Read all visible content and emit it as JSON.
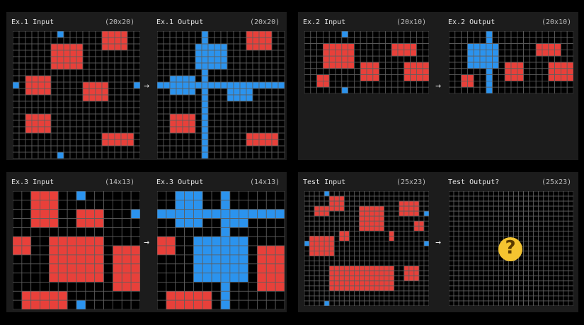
{
  "colors": {
    "background": "#000000",
    "panel": "#1c1c1c",
    "cell_empty": "#000000",
    "grid_line": "#5e5e5e",
    "red": "#e8403a",
    "blue": "#2b93ee"
  },
  "arrow_glyph": "→",
  "test_emoji": "thinking-face-icon",
  "examples": [
    {
      "input": {
        "title": "Ex.1 Input",
        "dims": "(20x20)",
        "cols": 20,
        "rows": 20,
        "red": [
          [
            6,
            2,
            5,
            4
          ],
          [
            14,
            0,
            4,
            3
          ],
          [
            2,
            7,
            4,
            3
          ],
          [
            11,
            8,
            4,
            3
          ],
          [
            2,
            13,
            4,
            3
          ],
          [
            14,
            16,
            5,
            2
          ]
        ],
        "blue": [
          [
            7,
            0
          ],
          [
            0,
            8
          ],
          [
            19,
            8
          ],
          [
            7,
            19
          ]
        ]
      },
      "output": {
        "title": "Ex.1 Output",
        "dims": "(20x20)",
        "cols": 20,
        "rows": 20,
        "red": [
          [
            14,
            0,
            4,
            3
          ],
          [
            2,
            13,
            4,
            3
          ],
          [
            14,
            16,
            5,
            2
          ]
        ],
        "blue_rects": [
          [
            6,
            2,
            5,
            4
          ],
          [
            2,
            7,
            4,
            3
          ],
          [
            11,
            8,
            4,
            3
          ]
        ],
        "blue_cols": [
          7
        ],
        "blue_rows": [
          8
        ]
      }
    },
    {
      "input": {
        "title": "Ex.2 Input",
        "dims": "(20x10)",
        "cols": 20,
        "rows": 10,
        "red": [
          [
            3,
            2,
            5,
            4
          ],
          [
            14,
            2,
            4,
            2
          ],
          [
            9,
            5,
            3,
            3
          ],
          [
            16,
            5,
            4,
            3
          ],
          [
            2,
            7,
            2,
            2
          ]
        ],
        "blue": [
          [
            6,
            0
          ],
          [
            6,
            9
          ]
        ]
      },
      "output": {
        "title": "Ex.2 Output",
        "dims": "(20x10)",
        "cols": 20,
        "rows": 10,
        "red": [
          [
            14,
            2,
            4,
            2
          ],
          [
            9,
            5,
            3,
            3
          ],
          [
            16,
            5,
            4,
            3
          ],
          [
            2,
            7,
            2,
            2
          ]
        ],
        "blue_rects": [
          [
            3,
            2,
            5,
            4
          ]
        ],
        "blue_cols": [
          6
        ],
        "blue_rows": []
      }
    },
    {
      "input": {
        "title": "Ex.3 Input",
        "dims": "(14x13)",
        "cols": 14,
        "rows": 13,
        "red": [
          [
            2,
            0,
            3,
            4
          ],
          [
            7,
            2,
            3,
            2
          ],
          [
            0,
            5,
            2,
            2
          ],
          [
            4,
            5,
            6,
            5
          ],
          [
            11,
            6,
            3,
            5
          ],
          [
            1,
            11,
            5,
            2
          ]
        ],
        "blue": [
          [
            7,
            0
          ],
          [
            13,
            2
          ],
          [
            7,
            12
          ]
        ]
      },
      "output": {
        "title": "Ex.3 Output",
        "dims": "(14x13)",
        "cols": 14,
        "rows": 13,
        "red": [
          [
            0,
            5,
            2,
            2
          ],
          [
            11,
            6,
            3,
            5
          ],
          [
            1,
            11,
            5,
            2
          ]
        ],
        "blue_rects": [
          [
            2,
            0,
            3,
            4
          ],
          [
            7,
            2,
            3,
            2
          ],
          [
            4,
            5,
            6,
            5
          ]
        ],
        "blue_cols": [
          7
        ],
        "blue_rows": [
          2
        ]
      }
    }
  ],
  "test": {
    "input": {
      "title": "Test Input",
      "dims": "(25x23)",
      "cols": 25,
      "rows": 23,
      "red": [
        [
          5,
          1,
          3,
          3
        ],
        [
          19,
          2,
          4,
          3
        ],
        [
          2,
          3,
          3,
          2
        ],
        [
          11,
          3,
          5,
          5
        ],
        [
          22,
          6,
          2,
          2
        ],
        [
          7,
          8,
          2,
          2
        ],
        [
          1,
          9,
          5,
          4
        ],
        [
          17,
          8,
          1,
          2
        ],
        [
          5,
          15,
          13,
          5
        ],
        [
          20,
          15,
          3,
          3
        ],
        [
          15,
          17,
          2,
          2
        ]
      ],
      "blue": [
        [
          4,
          0
        ],
        [
          24,
          4
        ],
        [
          0,
          10
        ],
        [
          24,
          10
        ],
        [
          4,
          22
        ]
      ]
    },
    "output": {
      "title": "Test Output?",
      "dims": "(25x23)",
      "cols": 25,
      "rows": 23,
      "red": [],
      "blue_rects": [],
      "blue_cols": [],
      "blue_rows": []
    }
  }
}
